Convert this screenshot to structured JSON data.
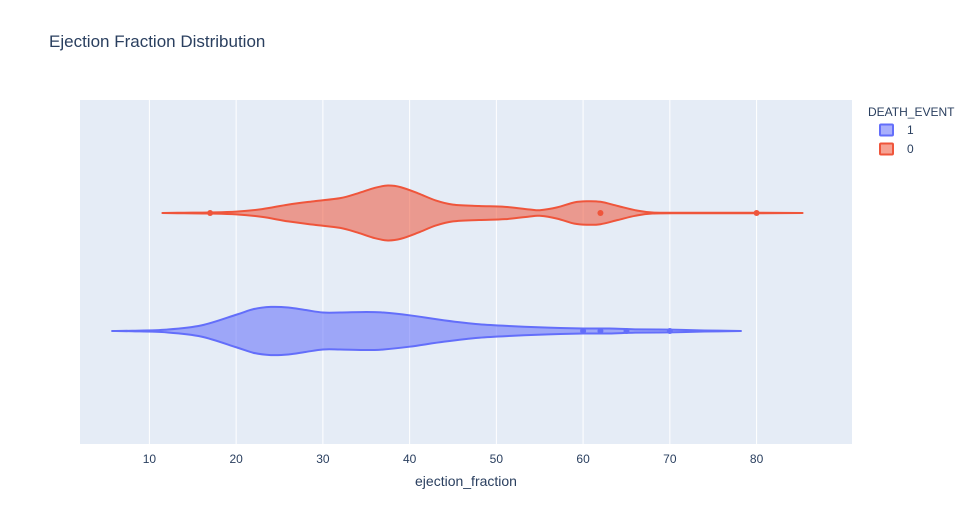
{
  "chart_data": {
    "type": "violin",
    "orientation": "horizontal",
    "title": "Ejection Fraction Distribution",
    "xlabel": "ejection_fraction",
    "ylabel": "",
    "xlim": [
      2,
      91
    ],
    "xticks": [
      10,
      20,
      30,
      40,
      50,
      60,
      70,
      80
    ],
    "grid": true,
    "legend": {
      "title": "DEATH_EVENT",
      "position": "top-right"
    },
    "series": [
      {
        "name": "1",
        "color": "#636efa",
        "fill": "rgba(99,110,250,0.55)",
        "row": 0,
        "range": [
          5.7,
          78.2
        ],
        "density": [
          [
            5.7,
            0.0
          ],
          [
            8,
            0.01
          ],
          [
            12,
            0.05
          ],
          [
            16,
            0.2
          ],
          [
            20,
            0.58
          ],
          [
            22,
            0.78
          ],
          [
            24,
            0.86
          ],
          [
            26,
            0.84
          ],
          [
            28,
            0.75
          ],
          [
            30,
            0.66
          ],
          [
            32,
            0.66
          ],
          [
            35,
            0.68
          ],
          [
            37,
            0.66
          ],
          [
            40,
            0.56
          ],
          [
            44,
            0.38
          ],
          [
            48,
            0.24
          ],
          [
            52,
            0.17
          ],
          [
            56,
            0.12
          ],
          [
            60,
            0.09
          ],
          [
            63,
            0.09
          ],
          [
            66,
            0.06
          ],
          [
            70,
            0.05
          ],
          [
            74,
            0.02
          ],
          [
            78.2,
            0.0
          ]
        ],
        "outliers": [
          60,
          62,
          65,
          70
        ]
      },
      {
        "name": "0",
        "color": "#ef553b",
        "fill": "rgba(239,85,59,0.55)",
        "row": 1,
        "range": [
          11.5,
          85.3
        ],
        "density": [
          [
            11.5,
            0.0
          ],
          [
            14,
            0.01
          ],
          [
            17,
            0.02
          ],
          [
            20,
            0.05
          ],
          [
            23,
            0.14
          ],
          [
            26,
            0.3
          ],
          [
            29,
            0.42
          ],
          [
            32,
            0.53
          ],
          [
            34,
            0.7
          ],
          [
            36,
            0.9
          ],
          [
            37.5,
            0.98
          ],
          [
            39,
            0.92
          ],
          [
            41,
            0.7
          ],
          [
            43,
            0.45
          ],
          [
            45,
            0.3
          ],
          [
            48,
            0.25
          ],
          [
            51,
            0.22
          ],
          [
            54,
            0.12
          ],
          [
            55,
            0.1
          ],
          [
            57,
            0.2
          ],
          [
            59,
            0.38
          ],
          [
            60.5,
            0.42
          ],
          [
            62,
            0.4
          ],
          [
            64,
            0.25
          ],
          [
            66,
            0.1
          ],
          [
            68,
            0.02
          ],
          [
            72,
            0.01
          ],
          [
            80,
            0.01
          ],
          [
            85.3,
            0.0
          ]
        ],
        "outliers": [
          17,
          62,
          80
        ]
      }
    ]
  }
}
